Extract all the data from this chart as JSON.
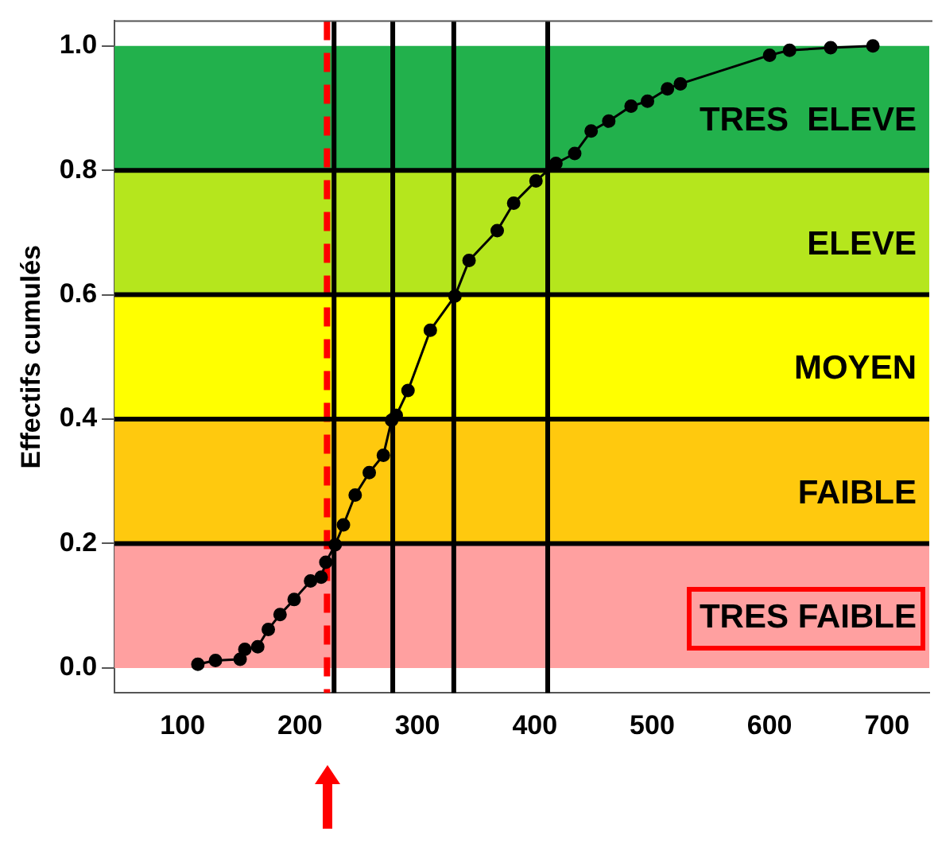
{
  "chart_data": {
    "type": "line",
    "ylabel": "Effectifs cumulés",
    "series": [
      {
        "color": "#000000",
        "x": [
          113,
          128,
          149,
          153,
          164,
          173,
          183,
          195,
          209,
          218,
          222,
          230,
          237,
          247,
          259,
          271,
          278,
          282,
          292,
          311,
          332,
          344,
          368,
          382,
          401,
          418,
          434,
          448,
          463,
          482,
          496,
          513,
          524,
          600,
          617,
          652,
          688
        ],
        "values": [
          0.006,
          0.012,
          0.014,
          0.03,
          0.034,
          0.062,
          0.086,
          0.11,
          0.14,
          0.146,
          0.17,
          0.198,
          0.23,
          0.278,
          0.314,
          0.342,
          0.398,
          0.406,
          0.446,
          0.543,
          0.598,
          0.655,
          0.703,
          0.747,
          0.783,
          0.811,
          0.827,
          0.863,
          0.879,
          0.903,
          0.911,
          0.931,
          0.939,
          0.985,
          0.993,
          0.997,
          1.0
        ]
      }
    ],
    "marker": "circle",
    "line_style": "solid",
    "legend": false,
    "grid": false,
    "xlim": [
      42,
      736
    ],
    "xticks": [
      100,
      200,
      300,
      400,
      500,
      600,
      700
    ],
    "ylim": [
      -0.04,
      1.04
    ],
    "yticks": [
      {
        "value": 0,
        "label": "0.0"
      },
      0.2,
      0.4,
      0.6,
      0.8,
      {
        "value": 1,
        "label": "1.0"
      }
    ],
    "bands": [
      {
        "axis": "y",
        "from": 0,
        "to": 0.2,
        "label": "TRES FAIBLE",
        "color": "#ffa0a0"
      },
      {
        "axis": "y",
        "from": 0.2,
        "to": 0.4,
        "label": "FAIBLE",
        "color": "#ffc90e"
      },
      {
        "axis": "y",
        "from": 0.4,
        "to": 0.6,
        "label": "MOYEN",
        "color": "#ffff00"
      },
      {
        "axis": "y",
        "from": 0.6,
        "to": 0.8,
        "label": "ELEVE",
        "color": "#b5e61d"
      },
      {
        "axis": "y",
        "from": 0.8,
        "to": 1,
        "label": "TRES  ELEVE",
        "color": "#22b14c"
      }
    ],
    "ref_lines": [
      {
        "axis": "x",
        "value": 223,
        "color": "#ff0000",
        "line_style": "dashed"
      },
      {
        "axis": "x",
        "value": 229,
        "color": "#000000",
        "line_style": "solid"
      },
      {
        "axis": "x",
        "value": 279,
        "color": "#000000",
        "line_style": "solid"
      },
      {
        "axis": "x",
        "value": 331,
        "color": "#000000",
        "line_style": "solid"
      },
      {
        "axis": "x",
        "value": 411,
        "color": "#000000",
        "line_style": "solid"
      },
      {
        "axis": "y",
        "value": 0.2,
        "color": "#000000",
        "line_style": "solid"
      },
      {
        "axis": "y",
        "value": 0.4,
        "color": "#000000",
        "line_style": "solid"
      },
      {
        "axis": "y",
        "value": 0.6,
        "color": "#000000",
        "line_style": "solid"
      },
      {
        "axis": "y",
        "value": 0.8,
        "color": "#000000",
        "line_style": "solid"
      }
    ]
  }
}
